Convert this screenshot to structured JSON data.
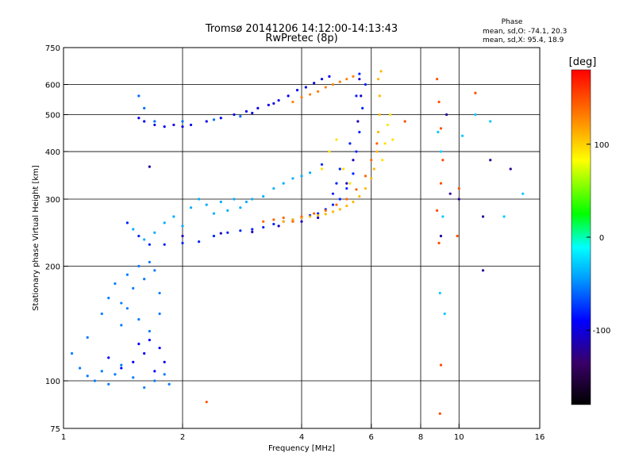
{
  "chart_data": {
    "type": "scatter",
    "title": "Tromsø 20141206 14:12:00-14:13:43",
    "subtitle": "RwPretec (8p)",
    "xlabel": "Frequency [MHz]",
    "ylabel": "Stationary phase Virtual Height [km]",
    "x_scale": "log",
    "y_scale": "log",
    "xlim": [
      1,
      16
    ],
    "ylim": [
      75,
      750
    ],
    "x_ticks": [
      1,
      2,
      4,
      6,
      8,
      10,
      16
    ],
    "y_ticks": [
      75,
      100,
      200,
      300,
      400,
      500,
      600,
      750
    ],
    "x_grid": [
      2,
      4,
      6,
      8,
      10
    ],
    "y_grid": [
      100,
      200,
      300,
      400,
      500,
      600
    ],
    "grid": true,
    "stats": {
      "heading": "Phase",
      "line_o": "mean, sd,O: -74.1, 20.3",
      "line_x": "mean, sd,X:  95.4, 18.9"
    },
    "colorbar": {
      "label": "[deg]",
      "range": [
        -180,
        180
      ],
      "ticks": [
        100,
        0,
        -100
      ],
      "tick_labels": [
        "100",
        "0",
        "-100"
      ]
    },
    "colors": {
      "background": "#ffffff",
      "grid": "#000000",
      "colormap": [
        "#000000",
        "#3a0068",
        "#0000ff",
        "#00a0ff",
        "#00ffff",
        "#00ff00",
        "#ffff00",
        "#ff8000",
        "#ff0000"
      ]
    },
    "series": [
      {
        "phase": -55,
        "trace": "cloud",
        "points": [
          [
            1.05,
            118
          ],
          [
            1.1,
            108
          ],
          [
            1.15,
            103
          ],
          [
            1.2,
            100
          ],
          [
            1.25,
            106
          ],
          [
            1.3,
            98
          ],
          [
            1.35,
            104
          ],
          [
            1.4,
            110
          ],
          [
            1.5,
            102
          ],
          [
            1.6,
            96
          ],
          [
            1.7,
            100
          ],
          [
            1.8,
            104
          ],
          [
            1.85,
            98
          ],
          [
            1.15,
            130
          ],
          [
            1.25,
            150
          ],
          [
            1.3,
            165
          ],
          [
            1.35,
            180
          ],
          [
            1.4,
            160
          ],
          [
            1.45,
            190
          ],
          [
            1.5,
            175
          ],
          [
            1.55,
            200
          ],
          [
            1.6,
            185
          ],
          [
            1.65,
            205
          ],
          [
            1.7,
            195
          ],
          [
            1.75,
            170
          ],
          [
            1.4,
            140
          ],
          [
            1.45,
            155
          ],
          [
            1.55,
            145
          ],
          [
            1.65,
            135
          ],
          [
            1.75,
            150
          ]
        ]
      },
      {
        "phase": -90,
        "trace": "cloud",
        "points": [
          [
            1.3,
            115
          ],
          [
            1.4,
            108
          ],
          [
            1.5,
            112
          ],
          [
            1.6,
            118
          ],
          [
            1.7,
            106
          ],
          [
            1.8,
            112
          ],
          [
            1.55,
            125
          ],
          [
            1.65,
            128
          ],
          [
            1.75,
            122
          ]
        ]
      },
      {
        "phase": -40,
        "trace": "F-trace",
        "points": [
          [
            1.5,
            250
          ],
          [
            1.6,
            235
          ],
          [
            1.7,
            245
          ],
          [
            1.8,
            260
          ],
          [
            1.9,
            270
          ],
          [
            2.0,
            255
          ],
          [
            2.1,
            285
          ],
          [
            2.2,
            300
          ],
          [
            2.3,
            290
          ],
          [
            2.4,
            275
          ],
          [
            2.5,
            295
          ],
          [
            2.6,
            280
          ],
          [
            2.7,
            300
          ],
          [
            2.8,
            285
          ],
          [
            2.9,
            295
          ],
          [
            3.0,
            300
          ],
          [
            3.2,
            305
          ],
          [
            3.4,
            320
          ],
          [
            3.6,
            330
          ],
          [
            3.8,
            340
          ],
          [
            4.0,
            345
          ],
          [
            4.2,
            352
          ]
        ]
      },
      {
        "phase": -80,
        "trace": "F-trace",
        "points": [
          [
            1.45,
            260
          ],
          [
            1.55,
            240
          ],
          [
            1.65,
            228
          ],
          [
            1.8,
            228
          ],
          [
            2.0,
            230
          ],
          [
            2.2,
            232
          ],
          [
            2.4,
            240
          ],
          [
            2.6,
            245
          ],
          [
            2.8,
            248
          ],
          [
            3.0,
            250
          ],
          [
            3.2,
            253
          ],
          [
            3.4,
            258
          ],
          [
            3.6,
            262
          ],
          [
            3.8,
            265
          ],
          [
            4.0,
            268
          ],
          [
            4.2,
            272
          ],
          [
            4.4,
            275
          ],
          [
            4.6,
            282
          ],
          [
            4.8,
            290
          ],
          [
            5.0,
            300
          ],
          [
            5.2,
            320
          ],
          [
            5.4,
            350
          ],
          [
            5.5,
            400
          ],
          [
            5.6,
            450
          ],
          [
            5.7,
            520
          ],
          [
            5.8,
            600
          ],
          [
            5.6,
            640
          ],
          [
            5.0,
            360
          ],
          [
            4.9,
            330
          ],
          [
            4.8,
            310
          ],
          [
            4.5,
            370
          ],
          [
            5.3,
            420
          ],
          [
            5.5,
            560
          ]
        ]
      },
      {
        "phase": -110,
        "trace": "F-trace",
        "points": [
          [
            2.0,
            240
          ],
          [
            2.5,
            244
          ],
          [
            3.0,
            246
          ],
          [
            3.5,
            255
          ],
          [
            4.0,
            262
          ],
          [
            4.4,
            268
          ],
          [
            5.2,
            330
          ],
          [
            5.4,
            380
          ],
          [
            5.55,
            480
          ],
          [
            5.65,
            560
          ],
          [
            5.6,
            620
          ]
        ]
      },
      {
        "phase": 110,
        "trace": "F-trace",
        "points": [
          [
            3.6,
            262
          ],
          [
            3.8,
            265
          ],
          [
            4.0,
            268
          ],
          [
            4.2,
            270
          ],
          [
            4.4,
            272
          ],
          [
            4.6,
            274
          ],
          [
            4.8,
            278
          ],
          [
            5.0,
            282
          ],
          [
            5.2,
            288
          ],
          [
            5.4,
            295
          ],
          [
            5.6,
            305
          ],
          [
            5.8,
            320
          ],
          [
            6.0,
            340
          ],
          [
            6.1,
            360
          ],
          [
            6.2,
            400
          ],
          [
            6.25,
            450
          ],
          [
            6.3,
            500
          ],
          [
            6.3,
            560
          ],
          [
            6.25,
            620
          ],
          [
            6.35,
            650
          ]
        ]
      },
      {
        "phase": 140,
        "trace": "F-trace",
        "points": [
          [
            3.2,
            262
          ],
          [
            3.4,
            265
          ],
          [
            3.6,
            268
          ],
          [
            3.8,
            262
          ],
          [
            4.0,
            270
          ],
          [
            4.3,
            275
          ],
          [
            4.6,
            280
          ],
          [
            4.9,
            290
          ],
          [
            5.2,
            300
          ],
          [
            5.5,
            318
          ],
          [
            5.8,
            345
          ],
          [
            6.0,
            380
          ],
          [
            6.2,
            420
          ]
        ]
      },
      {
        "phase": 95,
        "trace": "F-trace",
        "points": [
          [
            4.5,
            360
          ],
          [
            4.7,
            400
          ],
          [
            4.9,
            430
          ],
          [
            5.1,
            360
          ],
          [
            5.3,
            330
          ],
          [
            6.4,
            380
          ],
          [
            6.5,
            420
          ],
          [
            6.6,
            470
          ],
          [
            6.7,
            500
          ],
          [
            6.8,
            430
          ]
        ]
      },
      {
        "phase": -95,
        "trace": "F2-trace",
        "points": [
          [
            1.55,
            490
          ],
          [
            1.6,
            480
          ],
          [
            1.7,
            470
          ],
          [
            1.8,
            465
          ],
          [
            1.9,
            470
          ],
          [
            2.0,
            465
          ],
          [
            2.1,
            470
          ],
          [
            2.3,
            480
          ],
          [
            2.5,
            490
          ],
          [
            2.7,
            500
          ],
          [
            2.9,
            510
          ],
          [
            3.1,
            520
          ],
          [
            3.3,
            530
          ],
          [
            3.5,
            545
          ],
          [
            3.7,
            560
          ],
          [
            3.9,
            580
          ],
          [
            4.1,
            590
          ],
          [
            4.3,
            605
          ],
          [
            4.5,
            620
          ],
          [
            4.7,
            630
          ],
          [
            3.0,
            505
          ],
          [
            3.4,
            535
          ]
        ]
      },
      {
        "phase": -60,
        "trace": "F2-trace",
        "points": [
          [
            1.55,
            560
          ],
          [
            1.6,
            520
          ],
          [
            1.7,
            480
          ],
          [
            2.0,
            480
          ],
          [
            2.4,
            485
          ],
          [
            2.8,
            495
          ]
        ]
      },
      {
        "phase": 130,
        "trace": "F2-trace",
        "points": [
          [
            3.8,
            540
          ],
          [
            4.0,
            555
          ],
          [
            4.2,
            565
          ],
          [
            4.4,
            575
          ],
          [
            4.6,
            590
          ],
          [
            4.8,
            600
          ],
          [
            5.0,
            610
          ],
          [
            5.2,
            620
          ],
          [
            5.4,
            630
          ]
        ]
      },
      {
        "phase": 150,
        "trace": "sparse",
        "points": [
          [
            8.8,
            620
          ],
          [
            8.9,
            540
          ],
          [
            9.0,
            460
          ],
          [
            9.1,
            380
          ],
          [
            9.0,
            330
          ],
          [
            8.8,
            280
          ],
          [
            8.9,
            230
          ],
          [
            9.0,
            110
          ],
          [
            8.95,
            82
          ],
          [
            10.0,
            320
          ],
          [
            9.9,
            240
          ],
          [
            11.0,
            570
          ],
          [
            7.3,
            480
          ],
          [
            2.3,
            88
          ]
        ]
      },
      {
        "phase": -30,
        "trace": "sparse",
        "points": [
          [
            8.85,
            450
          ],
          [
            9.0,
            400
          ],
          [
            9.1,
            270
          ],
          [
            8.95,
            170
          ],
          [
            9.2,
            150
          ],
          [
            10.2,
            440
          ],
          [
            12.0,
            480
          ],
          [
            13.0,
            270
          ],
          [
            14.5,
            310
          ],
          [
            11.0,
            500
          ]
        ]
      },
      {
        "phase": -120,
        "trace": "sparse",
        "points": [
          [
            9.3,
            500
          ],
          [
            9.5,
            310
          ],
          [
            10.0,
            300
          ],
          [
            11.5,
            270
          ],
          [
            12.0,
            380
          ],
          [
            11.5,
            195
          ],
          [
            13.5,
            360
          ],
          [
            9.0,
            240
          ],
          [
            1.65,
            365
          ]
        ]
      }
    ]
  }
}
